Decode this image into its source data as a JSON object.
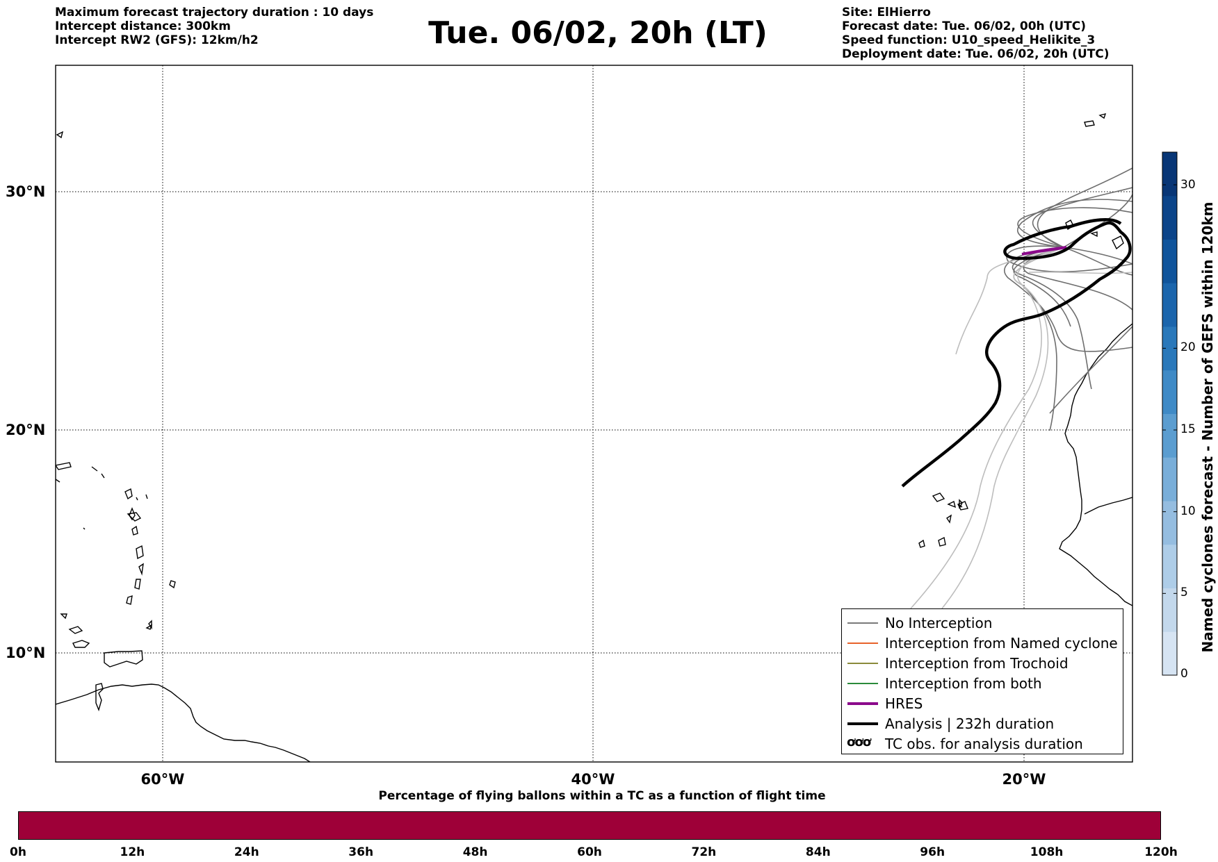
{
  "header": {
    "left": {
      "max_duration": "Maximum forecast trajectory duration : 10 days",
      "intercept_distance": "Intercept distance: 300km",
      "intercept_rw2": "Intercept RW2 (GFS):  12km/h2"
    },
    "title": "Tue. 06/02, 20h (LT)",
    "right": {
      "site": "Site: ElHierro",
      "forecast_date": "Forecast date: Tue. 06/02, 00h (UTC)",
      "speed_function": "Speed function: U10_speed_Helikite_3",
      "deployment_date": "Deployment date: Tue. 06/02, 20h (UTC)"
    }
  },
  "map": {
    "lat_labels": [
      "30°N",
      "20°N",
      "10°N"
    ],
    "lon_labels": [
      "60°W",
      "40°W",
      "20°W"
    ],
    "extent": {
      "lon_min": -65,
      "lon_max": -15,
      "lat_min": 5.4,
      "lat_max": 34.8
    }
  },
  "legend": {
    "items": [
      {
        "label": "No Interception",
        "color": "#7a7a7a"
      },
      {
        "label": "Interception from Named cyclone",
        "color": "#e8622a"
      },
      {
        "label": "Interception from Trochoid",
        "color": "#8a8a3a"
      },
      {
        "label": "Interception from both",
        "color": "#2a8a3a"
      },
      {
        "label": "HRES",
        "color": "#8b0a8b"
      },
      {
        "label": "Analysis | 232h duration",
        "color": "#000000"
      }
    ],
    "tc_obs_label": "TC obs. for analysis duration",
    "tc_obs_symbol": "ơơơ"
  },
  "colorbar": {
    "title": "Named cyclones forecast - Number of GEFS within 120km",
    "ticks": [
      "30",
      "20",
      "15",
      "10",
      "5",
      "0"
    ],
    "tick_values": [
      30,
      20,
      15,
      10,
      5,
      0
    ],
    "range": [
      0,
      32
    ],
    "colors": [
      "#d6e4f3",
      "#c3d8ec",
      "#aecde8",
      "#95bde0",
      "#79aed9",
      "#5b9dd0",
      "#3f8ac6",
      "#2a78ba",
      "#1b65ac",
      "#10549b",
      "#0b4489",
      "#083676"
    ]
  },
  "percentage_bar": {
    "title": "Percentage of flying ballons within a TC as a function of flight time",
    "ticks": [
      "0h",
      "12h",
      "24h",
      "36h",
      "48h",
      "60h",
      "72h",
      "84h",
      "96h",
      "108h",
      "120h"
    ],
    "color": "#9e0038"
  }
}
